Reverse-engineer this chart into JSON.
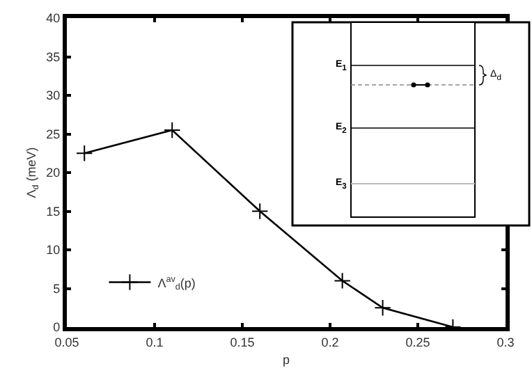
{
  "chart_data": {
    "type": "line",
    "xlabel": "p",
    "ylabel": "Λ$_{d}$ (meV)",
    "x": [
      0.06,
      0.11,
      0.16,
      0.207,
      0.23,
      0.27
    ],
    "series": [
      {
        "name": "Λ$^{av}$$_{d}$(p)",
        "color": "#000000",
        "values": [
          22.5,
          25.5,
          15,
          6,
          2.5,
          0
        ]
      }
    ],
    "xlim": [
      0.05,
      0.3
    ],
    "xticks": [
      0.05,
      0.1,
      0.15,
      0.2,
      0.25,
      0.3
    ],
    "ylim": [
      0,
      40
    ],
    "yticks": [
      0,
      5,
      10,
      15,
      20,
      25,
      30,
      35,
      40
    ],
    "grid": false,
    "legend": "bottom left",
    "marker": "cross",
    "line_style": "solid",
    "annotations": [
      "E$_{1}$",
      "E$_{2}$",
      "E$_{3}$",
      "Δ$_{d}$"
    ]
  }
}
